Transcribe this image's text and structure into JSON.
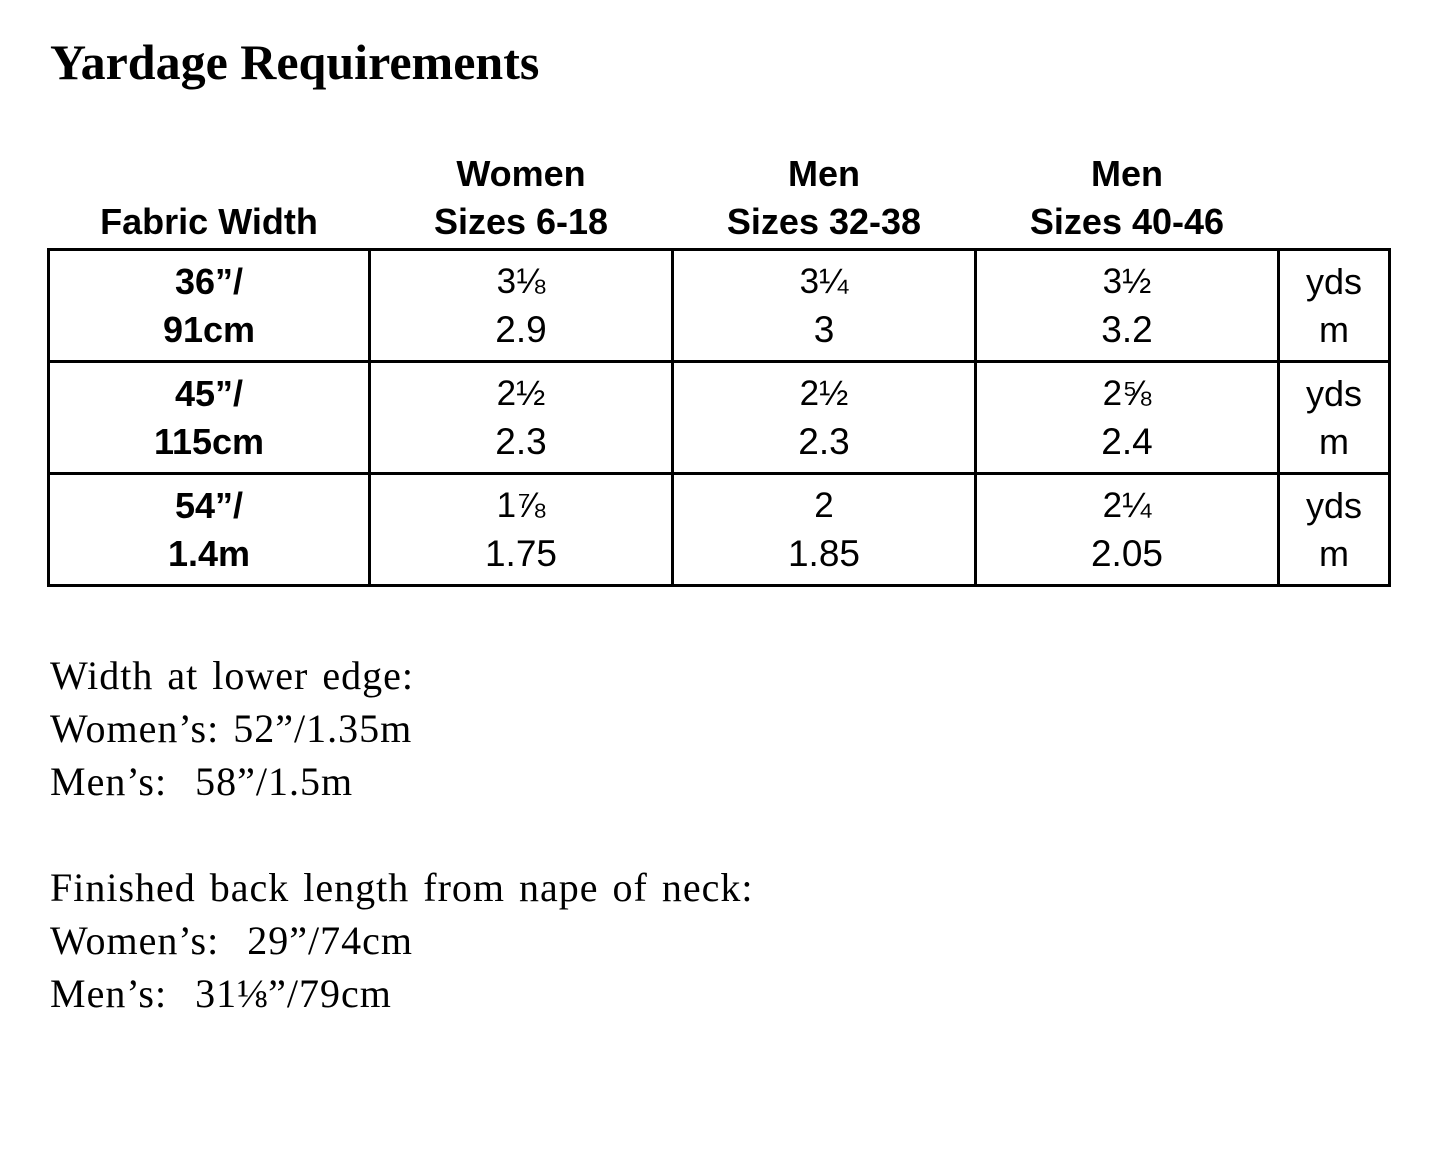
{
  "title": "Yardage Requirements",
  "table": {
    "headers": [
      {
        "line1": "",
        "line2": "Fabric Width"
      },
      {
        "line1": "Women",
        "line2": "Sizes 6-18"
      },
      {
        "line1": "Men",
        "line2": "Sizes 32-38"
      },
      {
        "line1": "Men",
        "line2": "Sizes 40-46"
      },
      {
        "line1": "",
        "line2": ""
      }
    ],
    "rows": [
      {
        "fabric_width_line1": "36”/",
        "fabric_width_line2": "91cm",
        "women_6_18": {
          "yds": "3⅛",
          "m": "2.9"
        },
        "men_32_38": {
          "yds": "3¼",
          "m": "3"
        },
        "men_40_46": {
          "yds": "3½",
          "m": "3.2"
        },
        "units": {
          "line1": "yds",
          "line2": "m"
        }
      },
      {
        "fabric_width_line1": "45”/",
        "fabric_width_line2": "115cm",
        "women_6_18": {
          "yds": "2½",
          "m": "2.3"
        },
        "men_32_38": {
          "yds": "2½",
          "m": "2.3"
        },
        "men_40_46": {
          "yds": "2⅝",
          "m": "2.4"
        },
        "units": {
          "line1": "yds",
          "line2": "m"
        }
      },
      {
        "fabric_width_line1": "54”/",
        "fabric_width_line2": "1.4m",
        "women_6_18": {
          "yds": "1⅞",
          "m": "1.75"
        },
        "men_32_38": {
          "yds": "2",
          "m": "1.85"
        },
        "men_40_46": {
          "yds": "2¼",
          "m": "2.05"
        },
        "units": {
          "line1": "yds",
          "line2": "m"
        }
      }
    ]
  },
  "notes": [
    {
      "heading": "Width at lower edge:",
      "lines": [
        "Women’s: 52”/1.35m",
        "Men’s:  58”/1.5m"
      ]
    },
    {
      "heading": "Finished back length from nape of neck:",
      "lines": [
        "Women’s:  29”/74cm",
        "Men’s:  31⅛”/79cm"
      ]
    }
  ]
}
